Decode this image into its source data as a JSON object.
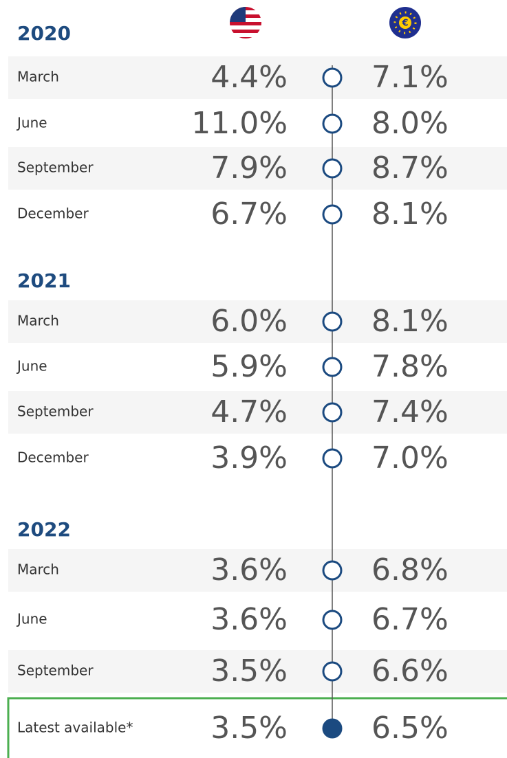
{
  "sections": [
    {
      "year": "2020",
      "rows": [
        {
          "label": "March",
          "us": "4.4%",
          "eu": "7.1%"
        },
        {
          "label": "June",
          "us": "11.0%",
          "eu": "8.0%"
        },
        {
          "label": "September",
          "us": "7.9%",
          "eu": "8.7%"
        },
        {
          "label": "December",
          "us": "6.7%",
          "eu": "8.1%"
        }
      ]
    },
    {
      "year": "2021",
      "rows": [
        {
          "label": "March",
          "us": "6.0%",
          "eu": "8.1%"
        },
        {
          "label": "June",
          "us": "5.9%",
          "eu": "7.8%"
        },
        {
          "label": "September",
          "us": "4.7%",
          "eu": "7.4%"
        },
        {
          "label": "December",
          "us": "3.9%",
          "eu": "7.0%"
        }
      ]
    },
    {
      "year": "2022",
      "rows": [
        {
          "label": "March",
          "us": "3.6%",
          "eu": "6.8%"
        },
        {
          "label": "June",
          "us": "3.6%",
          "eu": "6.7%"
        },
        {
          "label": "September",
          "us": "3.5%",
          "eu": "6.6%"
        }
      ]
    }
  ],
  "latest": {
    "label": "Latest available*",
    "us": "3.5%",
    "eu": "6.5%"
  }
}
